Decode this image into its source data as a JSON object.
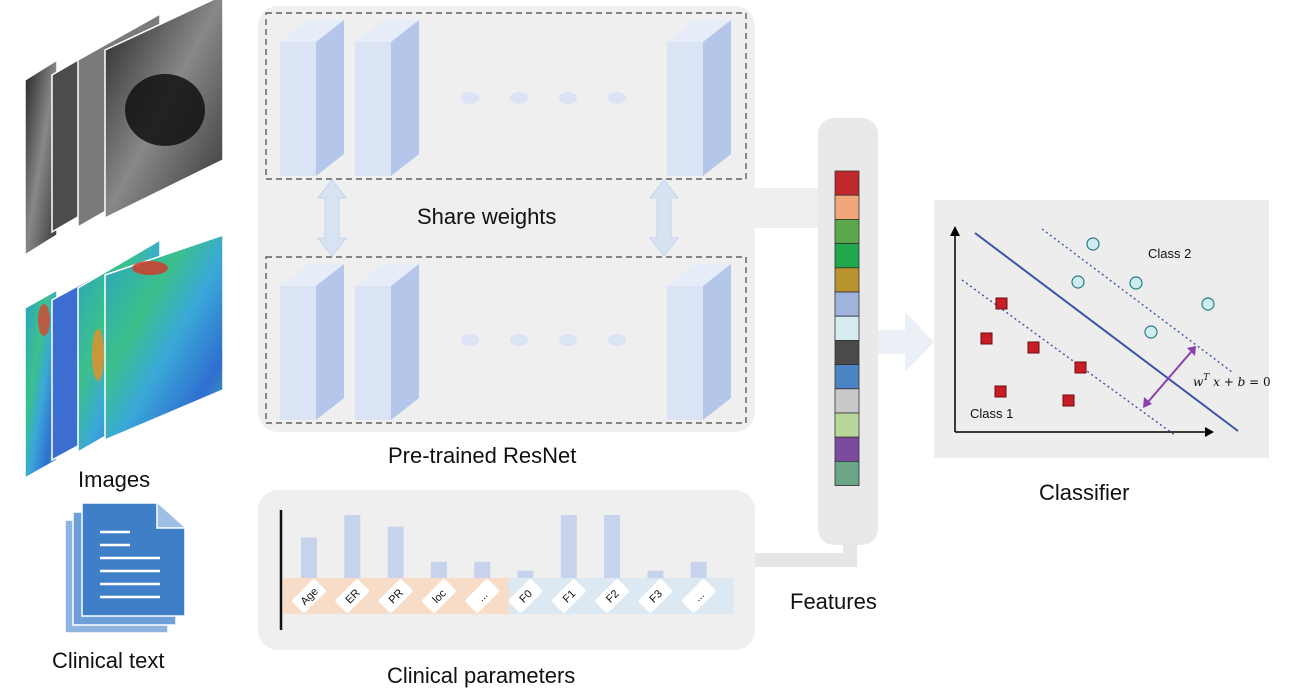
{
  "labels": {
    "share_weights": "Share weights",
    "resnet": "Pre-trained ResNet",
    "images": "Images",
    "clinical_text": "Clinical text",
    "clinical_parameters": "Clinical parameters",
    "features": "Features",
    "classifier": "Classifier"
  },
  "classifier_plot": {
    "class1": "Class 1",
    "class2": "Class 2"
  },
  "clinical_bars": [
    {
      "label": "Age",
      "value": 0.45,
      "group": "clinical"
    },
    {
      "label": "ER",
      "value": 0.7,
      "group": "clinical"
    },
    {
      "label": "PR",
      "value": 0.57,
      "group": "clinical"
    },
    {
      "label": "loc",
      "value": 0.18,
      "group": "clinical"
    },
    {
      "label": "...",
      "value": 0.18,
      "group": "clinical"
    },
    {
      "label": "F0",
      "value": 0.08,
      "group": "feature"
    },
    {
      "label": "F1",
      "value": 0.7,
      "group": "feature"
    },
    {
      "label": "F2",
      "value": 0.7,
      "group": "feature"
    },
    {
      "label": "F3",
      "value": 0.08,
      "group": "feature"
    },
    {
      "label": "...",
      "value": 0.18,
      "group": "feature"
    }
  ],
  "feature_colors": [
    "#c0282c",
    "#f0a77a",
    "#5aa84b",
    "#1fa84e",
    "#b8932e",
    "#9fb3dc",
    "#d6ecef",
    "#4a4a4a",
    "#4a84c2",
    "#c9c9c9",
    "#b7d89a",
    "#7d4b9e",
    "#6aa587"
  ]
}
